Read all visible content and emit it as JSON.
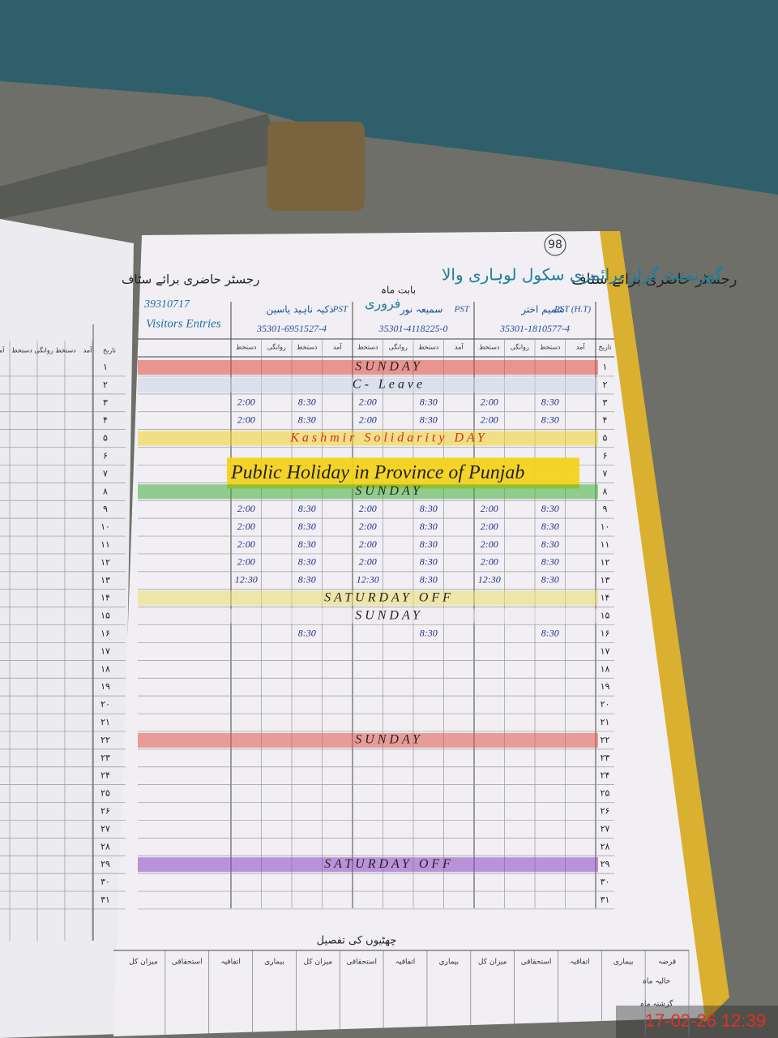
{
  "timestamp": "17-02-26  12:39",
  "left_page": {
    "header": "رجسٹر حاضری برائے سٹاف",
    "column_headers": [
      "تاریخ",
      "آمد",
      "دستخط",
      "روانگی",
      "دستخط",
      "آمد"
    ]
  },
  "right_page": {
    "page_number": "98",
    "header": "رجسٹر حاضری برائے سٹاف",
    "school": "گورنمنٹ گرلز پرائمری سکول لوہاری والا",
    "code": "39310717",
    "month_label": "بابت ماہ",
    "month": "فروری",
    "visitors": "Visitors Entries",
    "date_header": "تاریخ",
    "column_headers": [
      "آمد",
      "دستخط",
      "روانگی",
      "دستخط"
    ],
    "staff": [
      {
        "title": "PST (H.T)",
        "name": "شمیم اختر",
        "cnic": "35301-1810577-4"
      },
      {
        "title": "PST",
        "name": "سمیعہ نور",
        "cnic": "35301-4118225-0"
      },
      {
        "title": "PST",
        "name": "ذکیہ ناہید یاسین",
        "cnic": "35301-6951527-4"
      }
    ],
    "days": [
      "۱",
      "۲",
      "۳",
      "۴",
      "۵",
      "۶",
      "۷",
      "۸",
      "۹",
      "۱۰",
      "۱۱",
      "۱۲",
      "۱۳",
      "۱۴",
      "۱۵",
      "۱۶",
      "۱۷",
      "۱۸",
      "۱۹",
      "۲۰",
      "۲۱",
      "۲۲",
      "۲۳",
      "۲۴",
      "۲۵",
      "۲۶",
      "۲۷",
      "۲۸",
      "۲۹",
      "۳۰",
      "۳۱"
    ],
    "notes": [
      {
        "day": "۱",
        "text": "SUNDAY",
        "color": "#e0483c"
      },
      {
        "day": "۲",
        "text": "C- Leave",
        "color": "#c9d3e8"
      },
      {
        "day": "۵",
        "text": "Kashmir Solidarity DAY",
        "color": "#f2d22a"
      },
      {
        "day": "۷",
        "text": "Public Holiday in Province of Punjab",
        "color": "#f4d21e"
      },
      {
        "day": "۸",
        "text": "SUNDAY",
        "color": "#3fae3a"
      },
      {
        "day": "۱۴",
        "text": "SATURDAY OFF",
        "color": "#eadf6a"
      },
      {
        "day": "۱۵",
        "text": "SUNDAY",
        "color": "#f0eaf0"
      },
      {
        "day": "۲۲",
        "text": "SUNDAY",
        "color": "#e0574a"
      },
      {
        "day": "۲۹",
        "text": "SATURDAY OFF",
        "color": "#8d45c4"
      }
    ],
    "attendance": [
      {
        "day": "۳",
        "times": [
          "8:30",
          "2:00",
          "8:30",
          "2:00",
          "8:30",
          "2:00"
        ]
      },
      {
        "day": "۴",
        "times": [
          "8:30",
          "2:00",
          "8:30",
          "2:00",
          "8:30",
          "2:00"
        ]
      },
      {
        "day": "۹",
        "times": [
          "8:30",
          "2:00",
          "8:30",
          "2:00",
          "8:30",
          "2:00"
        ]
      },
      {
        "day": "۱۰",
        "times": [
          "8:30",
          "2:00",
          "8:30",
          "2:00",
          "8:30",
          "2:00"
        ]
      },
      {
        "day": "۱۱",
        "times": [
          "8:30",
          "2:00",
          "8:30",
          "2:00",
          "8:30",
          "2:00"
        ]
      },
      {
        "day": "۱۲",
        "times": [
          "8:30",
          "2:00",
          "8:30",
          "2:00",
          "8:30",
          "2:00"
        ]
      },
      {
        "day": "۱۳",
        "times": [
          "8:30",
          "12:30",
          "8:30",
          "12:30",
          "8:30",
          "12:30"
        ]
      },
      {
        "day": "۱۶",
        "times": [
          "8:30",
          "",
          "8:30",
          "",
          "8:30",
          ""
        ]
      }
    ],
    "footer": {
      "title": "چھٹیوں کی تفصیل",
      "headers": [
        "قرضہ",
        "بیماری",
        "اتفاقیہ",
        "استحقاقی",
        "میزان کل",
        "بیماری",
        "اتفاقیہ",
        "استحقاقی",
        "میزان کل",
        "بیماری",
        "اتفاقیہ",
        "استحقاقی",
        "میزان کل"
      ],
      "rows": [
        "خالیہ ماہ",
        "گزشتہ ماہ"
      ]
    }
  }
}
